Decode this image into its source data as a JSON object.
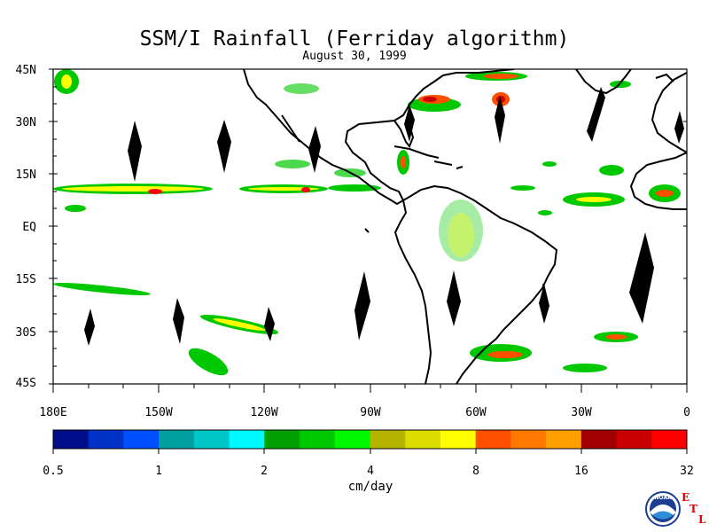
{
  "title": "SSM/I Rainfall (Ferriday algorithm)",
  "subtitle": "August 30, 1999",
  "lat_labels": [
    "45N",
    "30N",
    "15N",
    "EQ",
    "15S",
    "30S",
    "45S"
  ],
  "lon_labels": [
    "180E",
    "150W",
    "120W",
    "90W",
    "60W",
    "30W",
    "0"
  ],
  "colorbar": {
    "colors": [
      "#000e8a",
      "#0032c8",
      "#0050ff",
      "#00a0a0",
      "#00c8c8",
      "#00f8ff",
      "#00a000",
      "#00c800",
      "#00f800",
      "#b4b400",
      "#dcdc00",
      "#ffff00",
      "#ff5000",
      "#ff7800",
      "#ffa000",
      "#a00000",
      "#c80000",
      "#ff0000"
    ],
    "tick_labels": [
      "0.5",
      "1",
      "2",
      "4",
      "8",
      "16",
      "32"
    ],
    "units": "cm/day"
  },
  "logo": {
    "text": "NOAA",
    "letters": [
      "E",
      "T",
      "L"
    ]
  }
}
